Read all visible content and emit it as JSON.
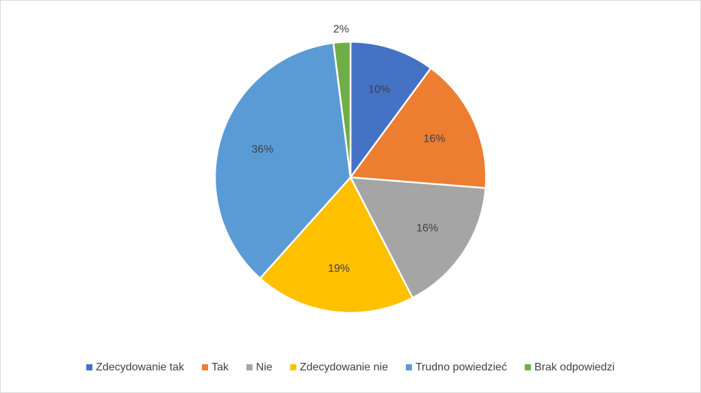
{
  "chart_data": {
    "type": "pie",
    "categories": [
      "Zdecydowanie tak",
      "Tak",
      "Nie",
      "Zdecydowanie nie",
      "Trudno powiedzieć",
      "Brak odpowiedzi"
    ],
    "values": [
      10,
      16,
      16,
      19,
      36,
      2
    ],
    "value_labels": [
      "10%",
      "16%",
      "16%",
      "19%",
      "36%",
      "2%"
    ],
    "colors": [
      "#4472c4",
      "#ed7d31",
      "#a5a5a5",
      "#ffc000",
      "#5b9bd5",
      "#70ad47"
    ],
    "legend": "bottom"
  }
}
